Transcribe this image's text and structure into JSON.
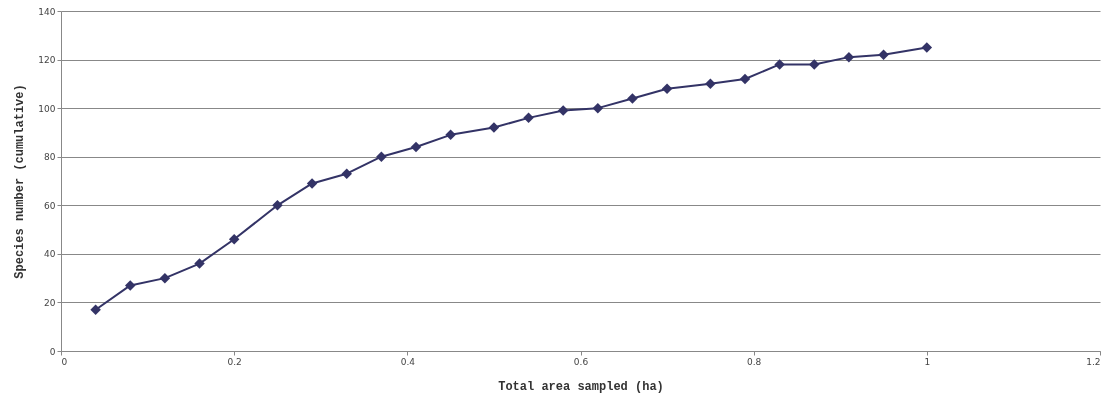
{
  "chart_data": {
    "type": "line",
    "xlabel": "Total area sampled (ha)",
    "ylabel": "Species number (cumulative)",
    "x": [
      0.04,
      0.08,
      0.12,
      0.16,
      0.2,
      0.25,
      0.29,
      0.33,
      0.37,
      0.41,
      0.45,
      0.5,
      0.54,
      0.58,
      0.62,
      0.66,
      0.7,
      0.75,
      0.79,
      0.83,
      0.87,
      0.91,
      0.95,
      1.0
    ],
    "series": [
      {
        "color": "#333366",
        "values": [
          17,
          27,
          30,
          36,
          46,
          60,
          69,
          73,
          80,
          84,
          89,
          92,
          96,
          99,
          100,
          104,
          108,
          110,
          112,
          118,
          118,
          121,
          122,
          125
        ]
      }
    ],
    "xlim": [
      0,
      1.2
    ],
    "xticks": [
      0,
      0.2,
      0.4,
      0.6,
      0.8,
      1,
      1.2
    ],
    "ylim": [
      0,
      140
    ],
    "yticks": [
      0,
      20,
      40,
      60,
      80,
      100,
      120,
      140
    ],
    "grid": "y",
    "marker": "diamond",
    "line_style": "solid"
  }
}
